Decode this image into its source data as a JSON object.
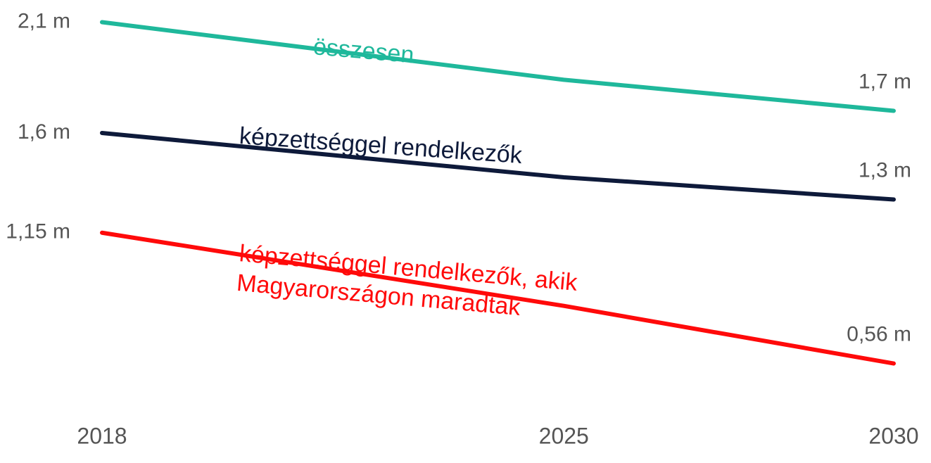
{
  "chart_data": {
    "type": "line",
    "x": [
      2018,
      2025,
      2030
    ],
    "xlim": [
      2018,
      2030
    ],
    "xticks": [
      2018,
      2025,
      2030
    ],
    "ylim": [
      0.2,
      2.2
    ],
    "series": [
      {
        "name": "összesen",
        "color": "#1fb89b",
        "values": [
          2.1,
          1.84,
          1.7
        ],
        "value_labels": [
          "2,1 m",
          null,
          "1,7 m"
        ]
      },
      {
        "name": "képzettséggel rendelkezők",
        "color": "#0e1a3a",
        "values": [
          1.6,
          1.4,
          1.3
        ],
        "value_labels": [
          "1,6 m",
          null,
          "1,3 m"
        ]
      },
      {
        "name": "képzettséggel rendelkezők, akik\nMagyarországon maradtak",
        "color": "#ff0a0a",
        "values": [
          1.15,
          0.82,
          0.56
        ],
        "value_labels": [
          "1,15 m",
          null,
          "0,56 m"
        ]
      }
    ]
  }
}
